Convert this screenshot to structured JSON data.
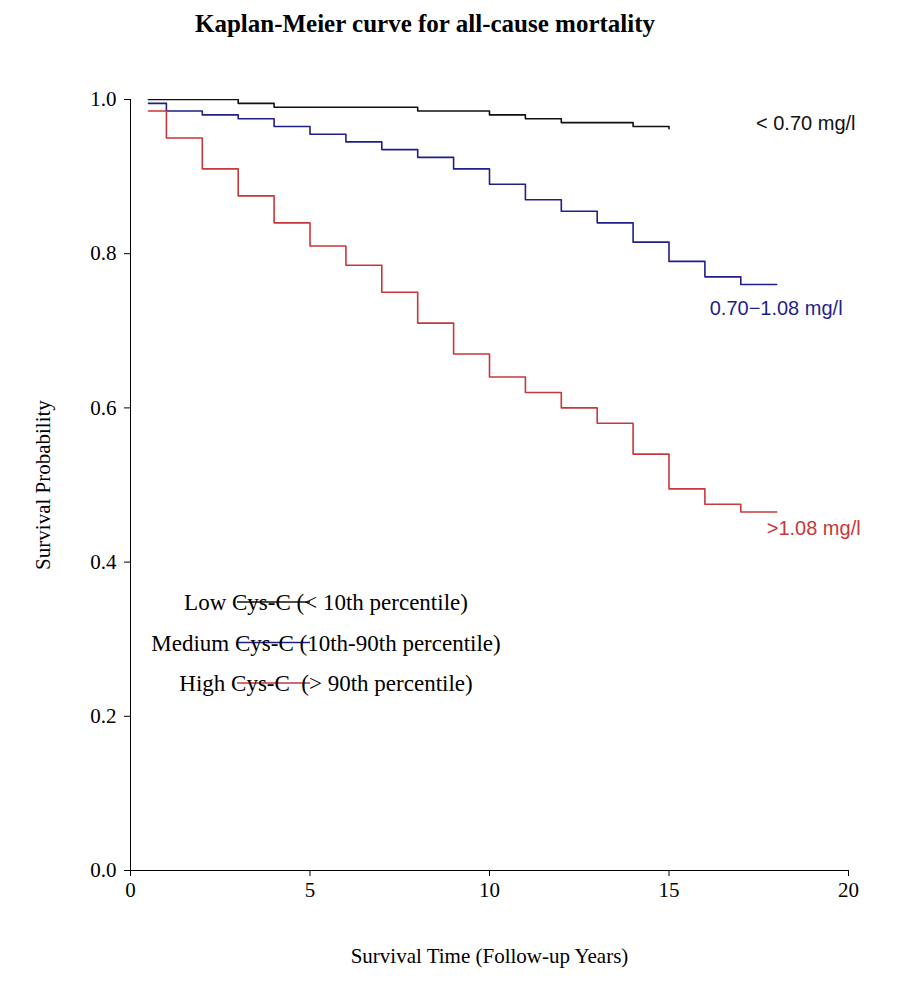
{
  "chart_data": {
    "type": "line",
    "title": "Kaplan-Meier curve for all-cause mortality",
    "x_label": "Survival Time (Follow-up Years)",
    "y_label": "Survival Probability",
    "line_style": "step",
    "legend": "lower center",
    "xlim": [
      0,
      20
    ],
    "xticks": [
      0,
      5,
      10,
      15,
      20
    ],
    "ylim": [
      0,
      1
    ],
    "yticks": [
      {
        "value": 0,
        "label": "0.0"
      },
      0.2,
      0.4,
      0.6,
      0.8,
      {
        "value": 1,
        "label": "1.0"
      }
    ],
    "x": [
      0.5,
      1,
      2,
      3,
      4,
      5,
      6,
      7,
      8,
      9,
      10,
      11,
      12,
      13,
      14,
      15,
      16,
      17,
      18
    ],
    "series": [
      {
        "name": "Low Cys-C (< 10th percentile)",
        "color": "#111111",
        "label": "< 0.70 mg/l",
        "values": [
          1.0,
          1.0,
          1.0,
          0.995,
          0.99,
          0.99,
          0.99,
          0.99,
          0.985,
          0.985,
          0.98,
          0.975,
          0.97,
          0.97,
          0.965,
          0.962,
          null,
          null,
          null
        ]
      },
      {
        "name": "Medium Cys-C (10th-90th percentile)",
        "color": "#1f1f8a",
        "label": "0.70−1.08 mg/l",
        "values": [
          0.995,
          0.985,
          0.98,
          0.975,
          0.965,
          0.955,
          0.945,
          0.935,
          0.925,
          0.91,
          0.89,
          0.87,
          0.855,
          0.84,
          0.815,
          0.79,
          0.77,
          0.76,
          0.76
        ]
      },
      {
        "name": "High Cys-C  (> 90th percentile)",
        "color": "#c8373a",
        "label": ">1.08 mg/l",
        "values": [
          0.985,
          0.95,
          0.91,
          0.875,
          0.84,
          0.81,
          0.785,
          0.75,
          0.71,
          0.67,
          0.64,
          0.62,
          0.6,
          0.58,
          0.54,
          0.495,
          0.475,
          0.465,
          0.465
        ]
      }
    ]
  }
}
